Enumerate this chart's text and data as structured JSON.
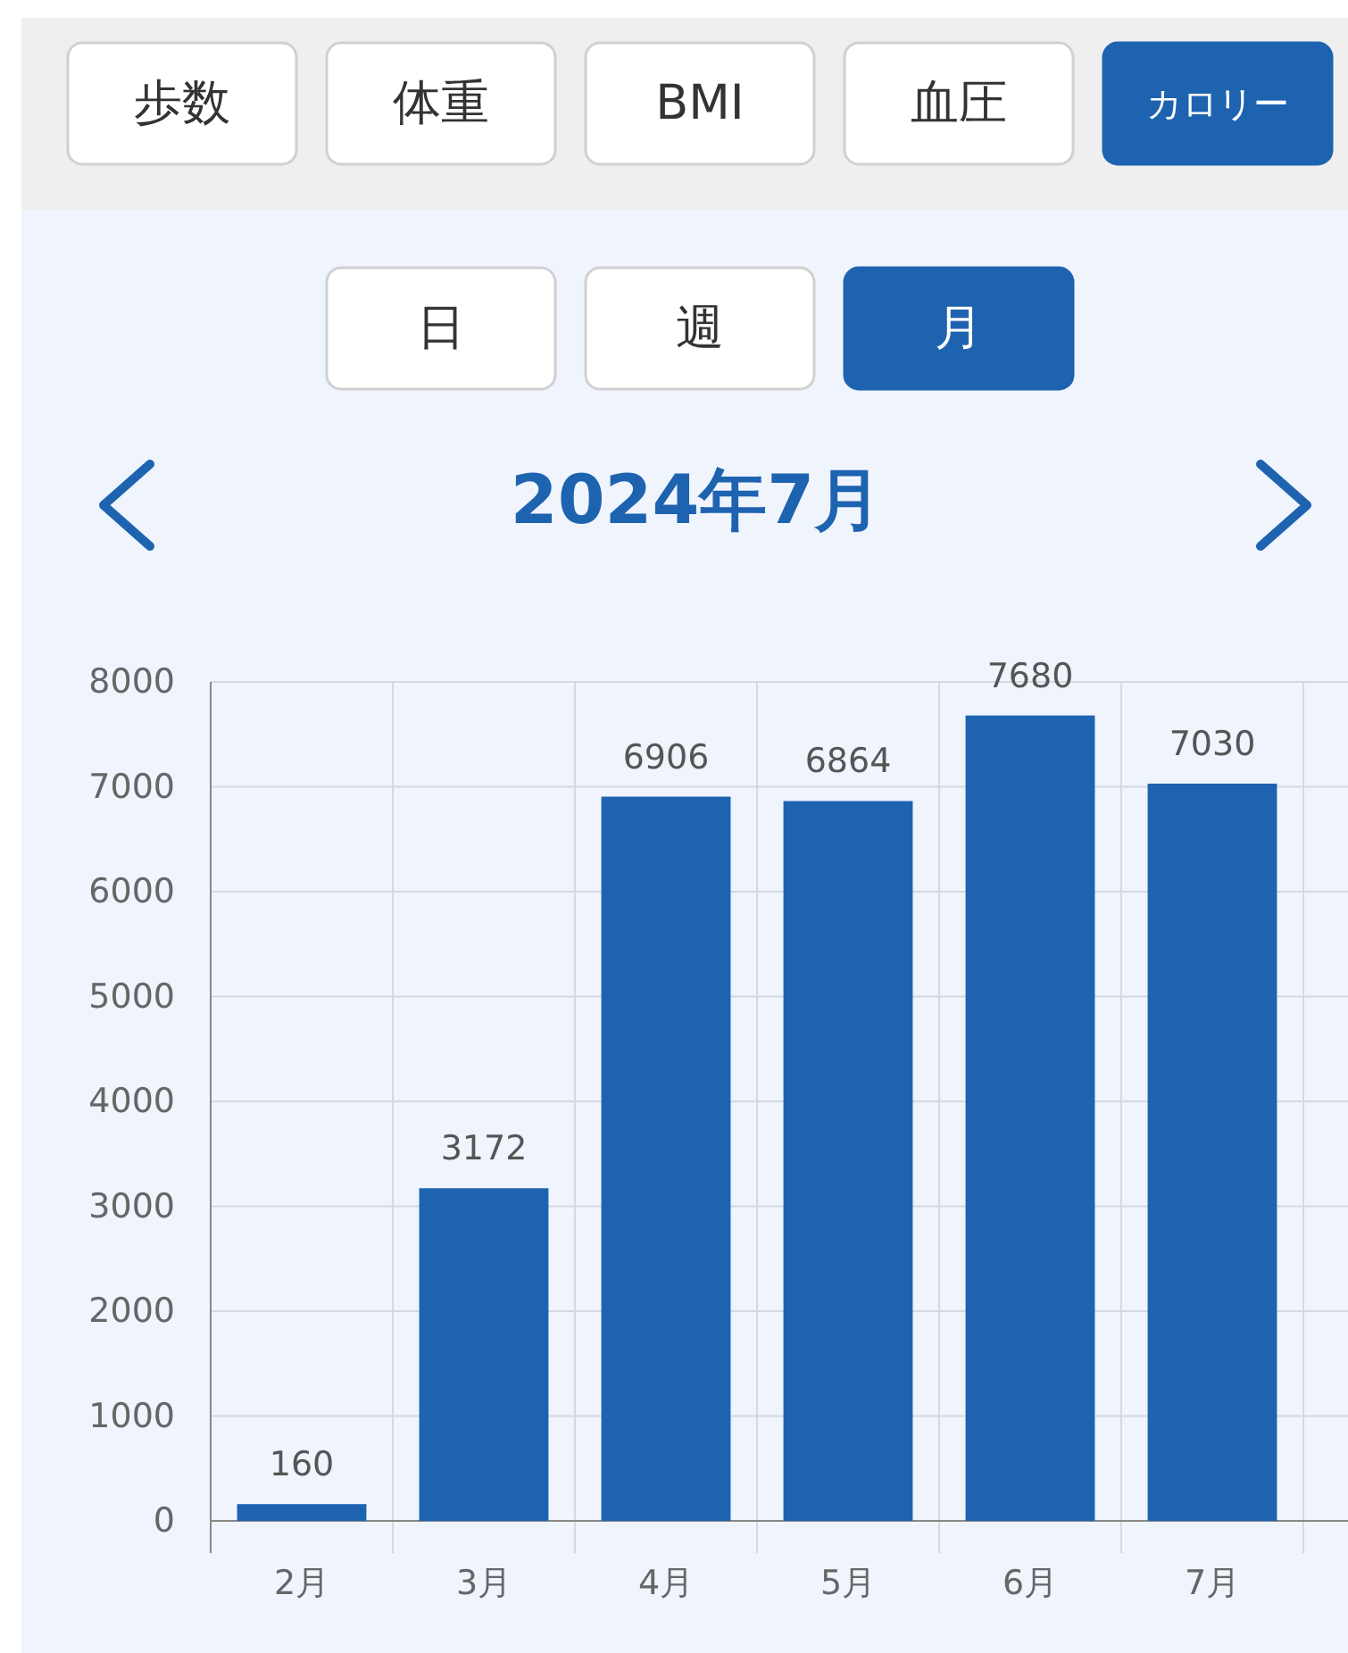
{
  "chart_data": {
    "type": "bar",
    "title": "2024年7月",
    "annotations": [
      "歩数",
      "体重",
      "BMI",
      "血圧",
      "カロリー",
      "日",
      "週",
      "月"
    ],
    "categories": [
      "2月",
      "3月",
      "4月",
      "5月",
      "6月",
      "7月"
    ],
    "values": [
      160,
      3172,
      6906,
      6864,
      7680,
      7030
    ],
    "color": "#1e63b0",
    "ylim": [
      0,
      8000
    ],
    "yticks": [
      0,
      1000,
      2000,
      3000,
      4000,
      5000,
      6000,
      7000,
      8000
    ],
    "grid": true,
    "data_labels": true
  }
}
